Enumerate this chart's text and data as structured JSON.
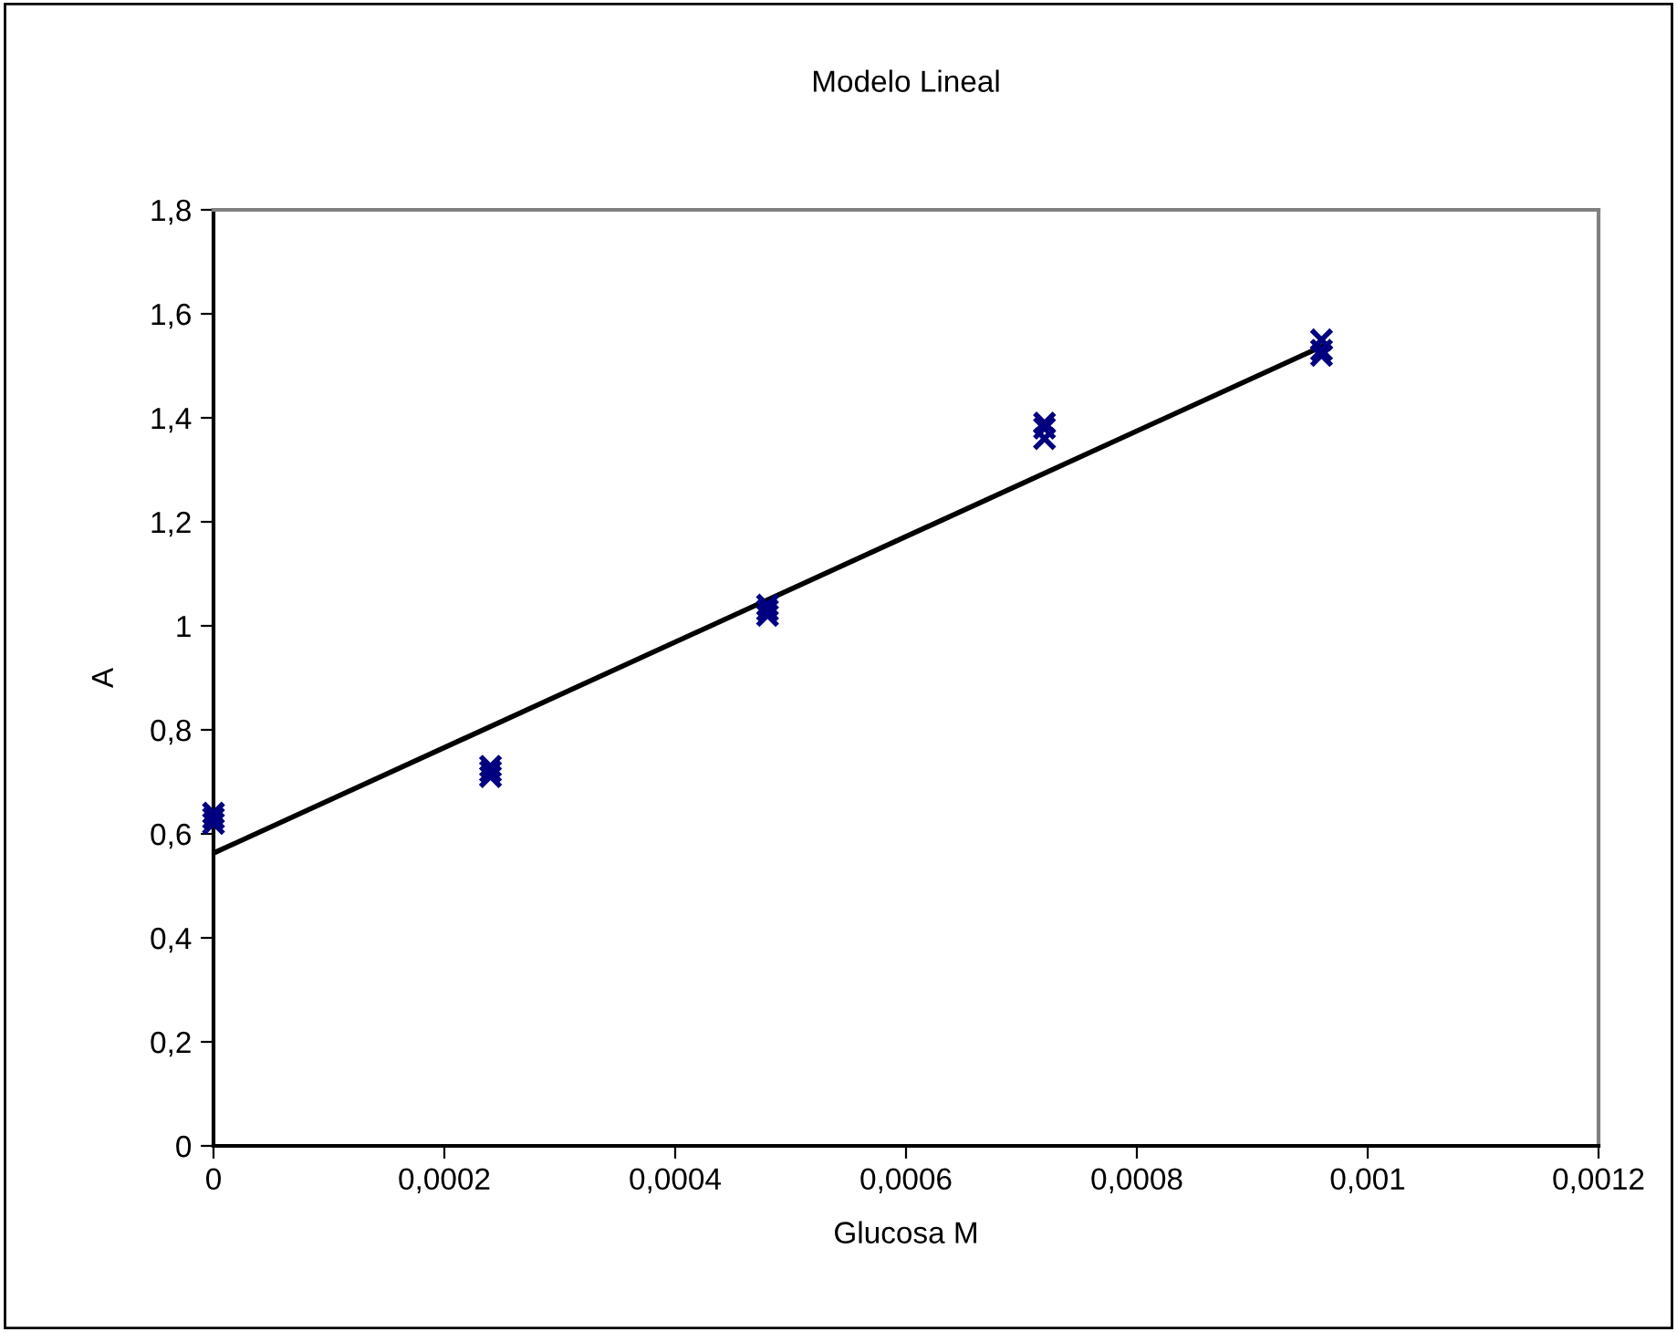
{
  "chart_data": {
    "type": "scatter",
    "title": "Modelo Lineal",
    "xlabel": "Glucosa M",
    "ylabel": "A",
    "xlim": [
      0,
      0.0012
    ],
    "xticks": [
      {
        "value": 0,
        "label": "0"
      },
      {
        "value": 0.0002,
        "label": "0,0002"
      },
      {
        "value": 0.0004,
        "label": "0,0004"
      },
      {
        "value": 0.0006,
        "label": "0,0006"
      },
      {
        "value": 0.0008,
        "label": "0,0008"
      },
      {
        "value": 0.001,
        "label": "0,001"
      },
      {
        "value": 0.0012,
        "label": "0,0012"
      }
    ],
    "ylim": [
      0,
      1.8
    ],
    "yticks": [
      {
        "value": 0,
        "label": "0"
      },
      {
        "value": 0.2,
        "label": "0,2"
      },
      {
        "value": 0.4,
        "label": "0,4"
      },
      {
        "value": 0.6,
        "label": "0,6"
      },
      {
        "value": 0.8,
        "label": "0,8"
      },
      {
        "value": 1,
        "label": "1"
      },
      {
        "value": 1.2,
        "label": "1,2"
      },
      {
        "value": 1.4,
        "label": "1,4"
      },
      {
        "value": 1.6,
        "label": "1,6"
      },
      {
        "value": 1.8,
        "label": "1,8"
      }
    ],
    "grid": false,
    "legend": false,
    "marker": "cross",
    "series": [
      {
        "color": "#000080",
        "x": [
          0,
          0,
          0,
          0.00024,
          0.00024,
          0.00024,
          0.00048,
          0.00048,
          0.00048,
          0.00072,
          0.00072,
          0.00072,
          0.00096,
          0.00096,
          0.00096
        ],
        "values": [
          0.62,
          0.63,
          0.64,
          0.71,
          0.72,
          0.73,
          1.02,
          1.03,
          1.04,
          1.36,
          1.38,
          1.39,
          1.52,
          1.53,
          1.55
        ]
      },
      {
        "type": "line",
        "color": "#000000",
        "x": [
          0,
          0.00096
        ],
        "values": [
          0.563,
          1.537
        ],
        "marker": "none",
        "line_style": "solid"
      }
    ]
  }
}
